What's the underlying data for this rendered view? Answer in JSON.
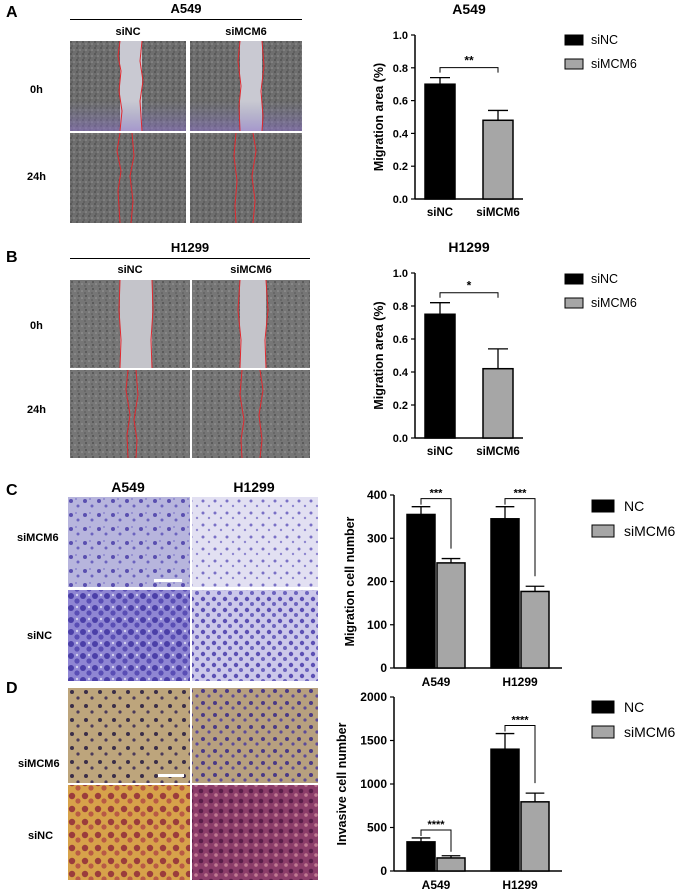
{
  "panels": {
    "A": {
      "letter": "A",
      "cell_line": "A549",
      "columns": [
        "siNC",
        "siMCM6"
      ],
      "rows": [
        "0h",
        "24h"
      ]
    },
    "B": {
      "letter": "B",
      "cell_line": "H1299",
      "columns": [
        "siNC",
        "siMCM6"
      ],
      "rows": [
        "0h",
        "24h"
      ]
    },
    "C": {
      "letter": "C",
      "columns": [
        "A549",
        "H1299"
      ],
      "rows": [
        "siMCM6",
        "siNC"
      ]
    },
    "D": {
      "letter": "D",
      "rows": [
        "siMCM6",
        "siNC"
      ]
    }
  },
  "colors": {
    "series1": "#000000",
    "series2": "#a6a6a6",
    "scratch_line": "#e0282e",
    "crystal_violet": "#6a5fc0",
    "invasion_bg": "#b9a27c"
  },
  "chart_data": [
    {
      "type": "bar",
      "title": "A549",
      "categories": [
        "siNC",
        "siMCM6"
      ],
      "values": [
        0.7,
        0.48
      ],
      "errors": [
        0.04,
        0.06
      ],
      "ylabel": "Migration area (%)",
      "ylim": [
        0,
        1.0
      ],
      "yticks": [
        "0.0",
        "0.2",
        "0.4",
        "0.6",
        "0.8",
        "1.0"
      ],
      "legend": [
        "siNC",
        "siMCM6"
      ],
      "legend_position": "right",
      "significance": [
        {
          "label": "**"
        }
      ]
    },
    {
      "type": "bar",
      "title": "H1299",
      "categories": [
        "siNC",
        "siMCM6"
      ],
      "values": [
        0.75,
        0.42
      ],
      "errors": [
        0.07,
        0.12
      ],
      "ylabel": "Migration area (%)",
      "ylim": [
        0,
        1.0
      ],
      "yticks": [
        "0.0",
        "0.2",
        "0.4",
        "0.6",
        "0.8",
        "1.0"
      ],
      "legend": [
        "siNC",
        "siMCM6"
      ],
      "legend_position": "right",
      "significance": [
        {
          "label": "*"
        }
      ]
    },
    {
      "type": "bar",
      "categories": [
        "A549",
        "H1299"
      ],
      "series": [
        {
          "name": "NC",
          "values": [
            355,
            345
          ],
          "errors": [
            18,
            28
          ]
        },
        {
          "name": "siMCM6",
          "values": [
            243,
            177
          ],
          "errors": [
            10,
            12
          ]
        }
      ],
      "ylabel": "Migration cell number",
      "ylim": [
        0,
        400
      ],
      "yticks": [
        "0",
        "100",
        "200",
        "300",
        "400"
      ],
      "legend_position": "right",
      "significance": [
        {
          "label": "***"
        },
        {
          "label": "***"
        }
      ]
    },
    {
      "type": "bar",
      "categories": [
        "A549",
        "H1299"
      ],
      "series": [
        {
          "name": "NC",
          "values": [
            335,
            1400
          ],
          "errors": [
            45,
            180
          ]
        },
        {
          "name": "siMCM6",
          "values": [
            150,
            795
          ],
          "errors": [
            25,
            100
          ]
        }
      ],
      "ylabel": "Invasive cell number",
      "ylim": [
        0,
        2000
      ],
      "yticks": [
        "0",
        "500",
        "1000",
        "1500",
        "2000"
      ],
      "legend_position": "right",
      "significance": [
        {
          "label": "****"
        },
        {
          "label": "****"
        }
      ]
    }
  ]
}
